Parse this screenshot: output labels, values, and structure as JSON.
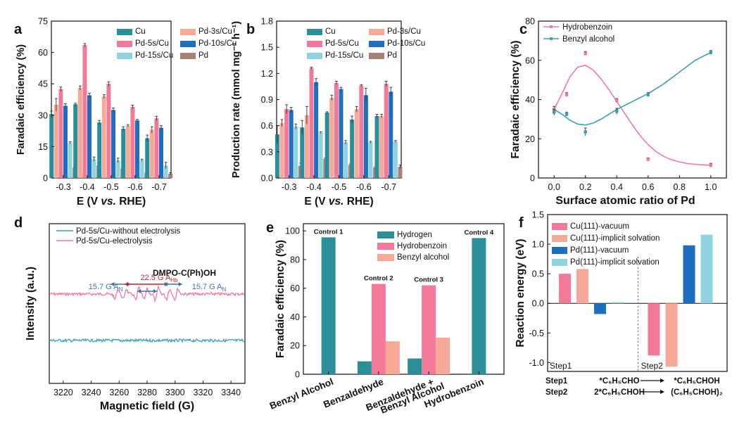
{
  "colors": {
    "Cu": "#2a8f9a",
    "Pd-3s/Cu": "#f6a996",
    "Pd-5s/Cu": "#f17a9b",
    "Pd-10s/Cu": "#1f6fc1",
    "Pd-15s/Cu": "#8fd3e0",
    "Pd": "#a8827a",
    "Hydrogen": "#2a8f9a",
    "Hydrobenzoin": "#f17a9b",
    "Benzyl alcohol": "#f6a996",
    "line_pink": "#f17a9b",
    "line_teal": "#3c9fb2",
    "Cu(111)-vacuum": "#f17a9b",
    "Cu(111)-implicit solvation": "#f6a996",
    "Pd(111)-vacuum": "#1f6fc1",
    "Pd(111)-implicit solvation": "#8fd3e0"
  },
  "chart_data": [
    {
      "id": "a",
      "panel_label": "a",
      "type": "bar",
      "xlabel_prefix": "E (V ",
      "xlabel_italic": "vs.",
      "xlabel_suffix": " RHE)",
      "ylabel": "Faradaic efficiency (%)",
      "ylim": [
        0,
        75
      ],
      "yticks": [
        0,
        15,
        30,
        45,
        60,
        75
      ],
      "categories": [
        "-0.3",
        "-0.4",
        "-0.5",
        "-0.6",
        "-0.7"
      ],
      "legend": [
        "Cu",
        "Pd-3s/Cu",
        "Pd-5s/Cu",
        "Pd-10s/Cu",
        "Pd-15s/Cu",
        "Pd"
      ],
      "series": [
        {
          "name": "Cu",
          "values": [
            30.5,
            35.2,
            26.5,
            23.5,
            19.0
          ],
          "errors": [
            1.5,
            0.5,
            1.0,
            1.0,
            1.5
          ]
        },
        {
          "name": "Pd-3s/Cu",
          "values": [
            35.0,
            43.0,
            39.0,
            25.0,
            23.0
          ],
          "errors": [
            3.0,
            1.0,
            0.8,
            0.5,
            1.5
          ]
        },
        {
          "name": "Pd-5s/Cu",
          "values": [
            42.5,
            63.5,
            45.0,
            34.0,
            28.5
          ],
          "errors": [
            1.0,
            0.8,
            1.0,
            0.8,
            1.0
          ]
        },
        {
          "name": "Pd-10s/Cu",
          "values": [
            34.5,
            39.5,
            32.5,
            27.5,
            24.0
          ],
          "errors": [
            1.0,
            1.0,
            1.0,
            0.5,
            1.0
          ]
        },
        {
          "name": "Pd-15s/Cu",
          "values": [
            16.8,
            9.0,
            8.5,
            8.5,
            6.0
          ],
          "errors": [
            0.5,
            1.0,
            1.0,
            0.5,
            1.5
          ]
        },
        {
          "name": "Pd",
          "values": [
            5.0,
            6.0,
            4.5,
            2.5,
            2.0
          ],
          "errors": [
            0.5,
            1.0,
            0.5,
            0.3,
            0.5
          ]
        }
      ]
    },
    {
      "id": "b",
      "panel_label": "b",
      "type": "bar",
      "xlabel_prefix": "E (V ",
      "xlabel_italic": "vs.",
      "xlabel_suffix": " RHE)",
      "ylabel": "Production  rate (mmol mg⁻¹ h⁻¹)",
      "ylim": [
        0,
        1.8
      ],
      "yticks": [
        0.0,
        0.3,
        0.6,
        0.9,
        1.2,
        1.5,
        1.8
      ],
      "categories": [
        "-0.3",
        "-0.4",
        "-0.5",
        "-0.6",
        "-0.7"
      ],
      "legend": [
        "Cu",
        "Pd-3s/Cu",
        "Pd-5s/Cu",
        "Pd-10s/Cu",
        "Pd-15s/Cu",
        "Pd"
      ],
      "series": [
        {
          "name": "Cu",
          "values": [
            0.5,
            0.58,
            0.75,
            0.67,
            0.71
          ],
          "errors": [
            0.1,
            0.08,
            0.01,
            0.04,
            0.02
          ]
        },
        {
          "name": "Pd-3s/Cu",
          "values": [
            0.63,
            0.72,
            0.92,
            0.79,
            0.71
          ],
          "errors": [
            0.04,
            0.1,
            0.03,
            0.03,
            0.02
          ]
        },
        {
          "name": "Pd-5s/Cu",
          "values": [
            0.79,
            1.26,
            1.09,
            1.06,
            1.08
          ],
          "errors": [
            0.05,
            0.01,
            0.02,
            0.01,
            0.03
          ]
        },
        {
          "name": "Pd-10s/Cu",
          "values": [
            0.78,
            1.1,
            1.02,
            0.95,
            0.99
          ],
          "errors": [
            0.03,
            0.04,
            0.02,
            0.08,
            0.05
          ]
        },
        {
          "name": "Pd-15s/Cu",
          "values": [
            0.59,
            0.52,
            0.41,
            0.41,
            0.42
          ],
          "errors": [
            0.03,
            0.01,
            0.02,
            0.01,
            0.01
          ]
        },
        {
          "name": "Pd",
          "values": [
            0.14,
            0.22,
            0.15,
            0.12,
            0.13
          ],
          "errors": [
            0.03,
            0.01,
            0.01,
            0.01,
            0.02
          ]
        }
      ]
    },
    {
      "id": "c",
      "panel_label": "c",
      "type": "scatter",
      "xlabel": "Surface atomic ratio of Pd",
      "ylabel": "Faradaic efficiency (%)",
      "xlim": [
        -0.1,
        1.1
      ],
      "ylim": [
        0,
        80
      ],
      "xticks": [
        0.0,
        0.2,
        0.4,
        0.6,
        0.8,
        1.0
      ],
      "yticks": [
        0,
        20,
        40,
        60,
        80
      ],
      "series": [
        {
          "name": "Hydrobenzoin",
          "x": [
            0,
            0.08,
            0.2,
            0.4,
            0.6,
            1.0
          ],
          "y": [
            35.0,
            42.5,
            63.5,
            39.5,
            9.5,
            6.5
          ],
          "errors": [
            1.5,
            1.0,
            1.0,
            1.0,
            0.8,
            1.0
          ],
          "curve_x": [
            0,
            0.05,
            0.1,
            0.15,
            0.2,
            0.25,
            0.3,
            0.35,
            0.4,
            0.45,
            0.5,
            0.55,
            0.6,
            0.65,
            0.7,
            0.75,
            0.8,
            0.85,
            0.9,
            0.95,
            1.0
          ],
          "curve_y": [
            35.0,
            43.0,
            51.5,
            56.5,
            57.5,
            55.0,
            50.5,
            45.0,
            39.0,
            33.0,
            27.0,
            21.5,
            17.0,
            13.5,
            11.0,
            9.3,
            8.2,
            7.4,
            7.0,
            6.7,
            6.5
          ]
        },
        {
          "name": "Benzyl alcohol",
          "x": [
            0,
            0.08,
            0.2,
            0.4,
            0.6,
            1.0
          ],
          "y": [
            33.5,
            32.5,
            23.5,
            34.0,
            42.5,
            64.0
          ],
          "errors": [
            1.5,
            1.0,
            2.0,
            1.5,
            1.0,
            1.0
          ],
          "curve_x": [
            0,
            0.05,
            0.1,
            0.15,
            0.2,
            0.25,
            0.3,
            0.35,
            0.4,
            0.45,
            0.5,
            0.55,
            0.6,
            0.65,
            0.7,
            0.75,
            0.8,
            0.85,
            0.9,
            0.95,
            1.0
          ],
          "curve_y": [
            35.0,
            32.5,
            29.5,
            27.5,
            27.0,
            28.0,
            30.0,
            32.5,
            35.0,
            37.0,
            39.0,
            41.0,
            43.0,
            45.5,
            48.0,
            51.0,
            54.0,
            57.0,
            60.0,
            62.0,
            64.0
          ]
        }
      ]
    },
    {
      "id": "d",
      "panel_label": "d",
      "type": "line",
      "xlabel": "Magnetic field (G)",
      "ylabel": "Intensity (a.u.)",
      "xlim": [
        3210,
        3350
      ],
      "xticks": [
        3220,
        3240,
        3260,
        3280,
        3300,
        3320,
        3340
      ],
      "series": [
        {
          "name": "Pd-5s/Cu-without electrolysis"
        },
        {
          "name": "Pd-5s/Cu-electrolysis"
        }
      ],
      "peaks_G": [
        3258,
        3264,
        3273,
        3279,
        3287,
        3295,
        3301
      ],
      "annotations": {
        "species": "DMPO-C(Ph)OH",
        "a_n_left": "15.7 G A",
        "a_n_left_sub": "N",
        "a_h": "22.5 G A",
        "a_h_sub": "Hb",
        "a_n_right": "15.7 G A",
        "a_n_right_sub": "N"
      }
    },
    {
      "id": "e",
      "panel_label": "e",
      "type": "bar",
      "ylabel": "Faradaic efficiency (%)",
      "ylim": [
        0,
        105
      ],
      "yticks": [
        0,
        20,
        40,
        60,
        80,
        100
      ],
      "categories": [
        "Benzyl Alcohol",
        "Benzaldehyde",
        "Benzaldehyde + Benzyl Alcohol",
        "Hydrobenzoin"
      ],
      "category_lines": [
        [
          "Benzyl Alcohol"
        ],
        [
          "Benzaldehyde"
        ],
        [
          "Benzaldehyde +",
          "Benzyl Alcohol"
        ],
        [
          "Hydrobenzoin"
        ]
      ],
      "group_labels": [
        "Control 1",
        "Control 2",
        "Control 3",
        "Control 4"
      ],
      "legend": [
        "Hydrogen",
        "Hydrobenzoin",
        "Benzyl alcohol"
      ],
      "series": [
        {
          "name": "Hydrogen",
          "values": [
            95.5,
            9.0,
            11.0,
            95.0
          ]
        },
        {
          "name": "Hydrobenzoin",
          "values": [
            0,
            63.0,
            62.0,
            0
          ]
        },
        {
          "name": "Benzyl alcohol",
          "values": [
            0,
            23.0,
            25.5,
            0
          ]
        }
      ]
    },
    {
      "id": "f",
      "panel_label": "f",
      "type": "bar",
      "ylabel": "Reaction energy (eV)",
      "ylim": [
        -1.15,
        1.5
      ],
      "yticks": [
        -1.0,
        -0.5,
        0.0,
        0.5,
        1.0,
        1.5
      ],
      "categories": [
        "Step1",
        "Step2"
      ],
      "legend": [
        "Cu(111)-vacuum",
        "Cu(111)-implicit solvation",
        "Pd(111)-vacuum",
        "Pd(111)-implicit solvation"
      ],
      "series": [
        {
          "name": "Cu(111)-vacuum",
          "values": [
            0.5,
            -0.88
          ]
        },
        {
          "name": "Cu(111)-implicit solvation",
          "values": [
            0.58,
            -1.07
          ]
        },
        {
          "name": "Pd(111)-vacuum",
          "values": [
            -0.18,
            0.98
          ]
        },
        {
          "name": "Pd(111)-implicit solvation",
          "values": [
            0.02,
            1.16
          ]
        }
      ],
      "step_labels": [
        "Step1",
        "Step2"
      ],
      "equations": [
        {
          "step": "Step1",
          "left": "*C₆H₅CHO",
          "right": "*C₆H₅CHOH"
        },
        {
          "step": "Step2",
          "left": "2*C₆H₅CHOH",
          "right": "(C₆H₅CHOH)₂"
        }
      ]
    }
  ]
}
